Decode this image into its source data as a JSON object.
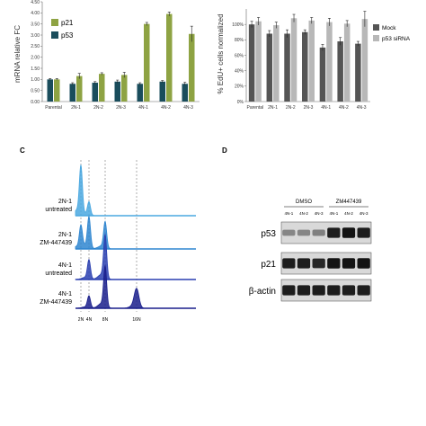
{
  "panel_letters": {
    "c": "C",
    "d": "D"
  },
  "chart_data": [
    {
      "type": "bar",
      "categories": [
        "Parental",
        "2N-1",
        "2N-2",
        "2N-3",
        "4N-1",
        "4N-2",
        "4N-3"
      ],
      "series": [
        {
          "name": "p53",
          "color": "#1a4d5c",
          "values": [
            1.0,
            0.8,
            0.85,
            0.9,
            0.8,
            0.9,
            0.8
          ],
          "errors": [
            0.04,
            0.05,
            0.05,
            0.07,
            0.05,
            0.05,
            0.07
          ]
        },
        {
          "name": "p21",
          "color": "#8ea343",
          "values": [
            1.0,
            1.15,
            1.25,
            1.2,
            3.5,
            3.95,
            3.05
          ],
          "errors": [
            0.04,
            0.12,
            0.05,
            0.12,
            0.07,
            0.09,
            0.35
          ]
        }
      ],
      "ylabel": "mRNA relative FC",
      "ylim": [
        0,
        4.5
      ],
      "yticks": [
        "0.00",
        "0.50",
        "1.00",
        "1.50",
        "2.00",
        "2.50",
        "3.00",
        "3.50",
        "4.00",
        "4.50"
      ],
      "legend_position": "top-left",
      "grid": false
    },
    {
      "type": "bar",
      "categories": [
        "Parental",
        "2N-1",
        "2N-2",
        "2N-3",
        "4N-1",
        "4N-2",
        "4N-3"
      ],
      "series": [
        {
          "name": "Mock",
          "color": "#555555",
          "values": [
            100,
            88,
            88,
            90,
            70,
            78,
            75
          ],
          "errors": [
            4,
            4,
            5,
            3,
            4,
            5,
            3
          ]
        },
        {
          "name": "p53 siRNA",
          "color": "#b8b8b8",
          "values": [
            104,
            99,
            108,
            105,
            103,
            101,
            107
          ],
          "errors": [
            5,
            4,
            5,
            4,
            5,
            4,
            10
          ]
        }
      ],
      "ylabel": "% EdU+ cells normalized",
      "ylim": [
        0,
        120
      ],
      "yticks": [
        "0%",
        "20%",
        "40%",
        "60%",
        "80%",
        "100%"
      ],
      "legend_position": "right",
      "grid": false
    },
    {
      "type": "line",
      "x_ticks": [
        "2N",
        "4N",
        "8N",
        "16N"
      ],
      "series": [
        {
          "name": "2N-1 untreated",
          "label_lines": [
            "2N-1",
            "untreated"
          ],
          "color": "#4aa8e0",
          "peaks": [
            {
              "x": "2N",
              "height": 1.0
            },
            {
              "x": "4N",
              "height": 0.28
            }
          ]
        },
        {
          "name": "2N-1 ZM-447439",
          "label_lines": [
            "2N-1",
            "ZM-447439"
          ],
          "color": "#2f86d0",
          "peaks": [
            {
              "x": "2N",
              "height": 0.45
            },
            {
              "x": "4N",
              "height": 0.65
            },
            {
              "x": "8N",
              "height": 0.55
            }
          ]
        },
        {
          "name": "4N-1 untreated",
          "label_lines": [
            "4N-1",
            "untreated"
          ],
          "color": "#2a3fb0",
          "peaks": [
            {
              "x": "4N",
              "height": 0.4
            },
            {
              "x": "8N",
              "height": 0.9
            }
          ]
        },
        {
          "name": "4N-1 ZM-447439",
          "label_lines": [
            "4N-1",
            "ZM-447439"
          ],
          "color": "#1a1f8c",
          "peaks": [
            {
              "x": "4N",
              "height": 0.25
            },
            {
              "x": "8N",
              "height": 0.85
            },
            {
              "x": "16N",
              "height": 0.4
            }
          ]
        }
      ]
    }
  ],
  "western": {
    "groups": [
      {
        "label": "DMSO",
        "lanes": [
          "4N-1",
          "4N-2",
          "4N-3"
        ]
      },
      {
        "label": "ZM447439",
        "lanes": [
          "4N-1",
          "4N-2",
          "4N-3"
        ]
      }
    ],
    "rows": [
      {
        "label": "p53",
        "intensities": [
          0.35,
          0.35,
          0.38,
          0.9,
          0.95,
          0.9
        ]
      },
      {
        "label": "p21",
        "intensities": [
          0.9,
          0.9,
          0.85,
          0.95,
          0.95,
          0.95
        ]
      },
      {
        "label": "β-actin",
        "intensities": [
          0.9,
          0.9,
          0.9,
          0.9,
          0.9,
          0.9
        ]
      }
    ]
  }
}
